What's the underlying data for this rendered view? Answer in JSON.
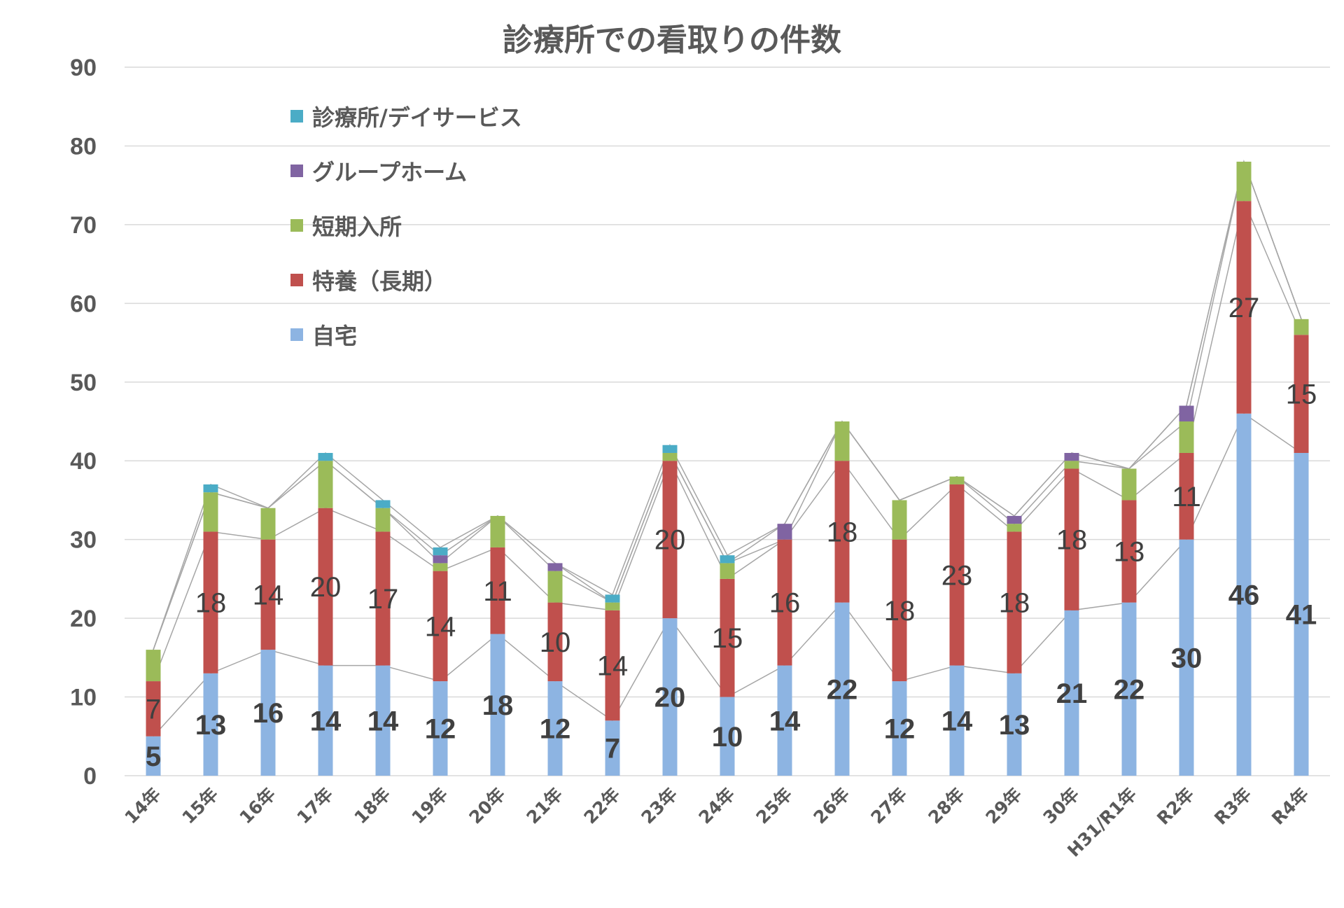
{
  "chart_data": {
    "type": "bar",
    "stacked": true,
    "title": "診療所での看取りの件数",
    "xlabel": "",
    "ylabel": "",
    "ylim": [
      0,
      90
    ],
    "yticks": [
      "0",
      "10",
      "20",
      "30",
      "40",
      "50",
      "60",
      "70",
      "80",
      "90"
    ],
    "grid": true,
    "legend_position": "upper-left",
    "categories": [
      "14年",
      "15年",
      "16年",
      "17年",
      "18年",
      "19年",
      "20年",
      "21年",
      "22年",
      "23年",
      "24年",
      "25年",
      "26年",
      "27年",
      "28年",
      "29年",
      "30年",
      "H31/R1年",
      "R2年",
      "R3年",
      "R4年"
    ],
    "series": [
      {
        "name": "自宅",
        "color": "#8db4e2",
        "label_style": "bold",
        "values": [
          5,
          13,
          16,
          14,
          14,
          12,
          18,
          12,
          7,
          20,
          10,
          14,
          22,
          12,
          14,
          13,
          21,
          22,
          30,
          46,
          41
        ]
      },
      {
        "name": "特養（長期）",
        "color": "#c0504d",
        "label_style": "normal",
        "values": [
          7,
          18,
          14,
          20,
          17,
          14,
          11,
          10,
          14,
          20,
          15,
          16,
          18,
          18,
          23,
          18,
          18,
          13,
          11,
          27,
          15
        ]
      },
      {
        "name": "短期入所",
        "color": "#9bbb59",
        "values": [
          4,
          5,
          4,
          6,
          3,
          1,
          4,
          4,
          1,
          1,
          2,
          0,
          5,
          5,
          1,
          1,
          1,
          4,
          4,
          5,
          2
        ]
      },
      {
        "name": "グループホーム",
        "color": "#8064a2",
        "values": [
          0,
          0,
          0,
          0,
          0,
          1,
          0,
          1,
          0,
          0,
          0,
          2,
          0,
          0,
          0,
          1,
          1,
          0,
          2,
          0,
          0
        ]
      },
      {
        "name": "診療所/デイサービス",
        "color": "#4bacc6",
        "values": [
          0,
          1,
          0,
          1,
          1,
          1,
          0,
          0,
          1,
          1,
          1,
          0,
          0,
          0,
          0,
          0,
          0,
          0,
          0,
          0,
          0
        ]
      }
    ],
    "legend_order": [
      "診療所/デイサービス",
      "グループホーム",
      "短期入所",
      "特養（長期）",
      "自宅"
    ],
    "series_lines": true,
    "gridline_color": "#d9d9d9",
    "axis_text_color": "#595959"
  }
}
